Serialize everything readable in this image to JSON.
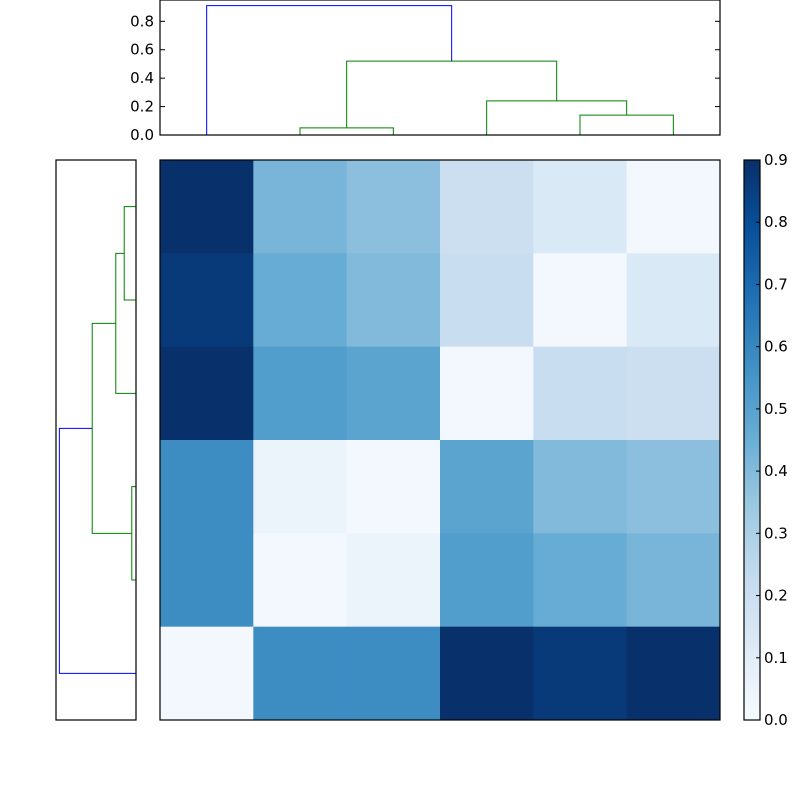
{
  "chart_data": {
    "type": "heatmap",
    "title": "",
    "description": "Clustered heatmap with row and column dendrograms and a Blues colorbar",
    "colormap": "Blues",
    "vmin": 0.0,
    "vmax": 0.9,
    "matrix": [
      [
        0.9,
        0.42,
        0.38,
        0.2,
        0.13,
        0.02
      ],
      [
        0.87,
        0.46,
        0.4,
        0.21,
        0.02,
        0.13
      ],
      [
        0.9,
        0.52,
        0.49,
        0.02,
        0.21,
        0.2
      ],
      [
        0.58,
        0.05,
        0.02,
        0.49,
        0.4,
        0.38
      ],
      [
        0.58,
        0.02,
        0.05,
        0.52,
        0.46,
        0.42
      ],
      [
        0.02,
        0.58,
        0.58,
        0.9,
        0.87,
        0.9
      ]
    ],
    "row_labels": [],
    "col_labels": [],
    "colorbar": {
      "ticks": [
        "0.0",
        "0.1",
        "0.2",
        "0.3",
        "0.4",
        "0.5",
        "0.6",
        "0.7",
        "0.8",
        "0.9"
      ],
      "range": [
        0.0,
        0.9
      ]
    },
    "top_dendrogram": {
      "ylim": [
        0.0,
        0.95
      ],
      "yticks": [
        "0.0",
        "0.2",
        "0.4",
        "0.6",
        "0.8"
      ],
      "links": [
        {
          "left": 1.5,
          "right": 2.5,
          "height": 0.05,
          "color": "#008000"
        },
        {
          "left": 4.5,
          "right": 5.5,
          "height": 0.14,
          "color": "#008000"
        },
        {
          "left": 3.5,
          "right": 5.0,
          "height": 0.24,
          "color": "#008000"
        },
        {
          "left": 2.0,
          "right": 4.25,
          "height": 0.52,
          "color": "#008000"
        },
        {
          "left": 0.5,
          "right": 3.125,
          "height": 0.91,
          "color": "#0000ff"
        }
      ]
    },
    "left_dendrogram": {
      "links": [
        {
          "top": 0.5,
          "bottom": 1.5,
          "height": 0.14,
          "color": "#008000"
        },
        {
          "top": 1.0,
          "bottom": 2.5,
          "height": 0.24,
          "color": "#008000"
        },
        {
          "top": 3.5,
          "bottom": 4.5,
          "height": 0.05,
          "color": "#008000"
        },
        {
          "top": 1.75,
          "bottom": 4.0,
          "height": 0.52,
          "color": "#008000"
        },
        {
          "top": 2.875,
          "bottom": 5.5,
          "height": 0.91,
          "color": "#0000ff"
        }
      ]
    },
    "colors": {
      "above_threshold": "#0000ff",
      "cluster": "#008000"
    }
  }
}
